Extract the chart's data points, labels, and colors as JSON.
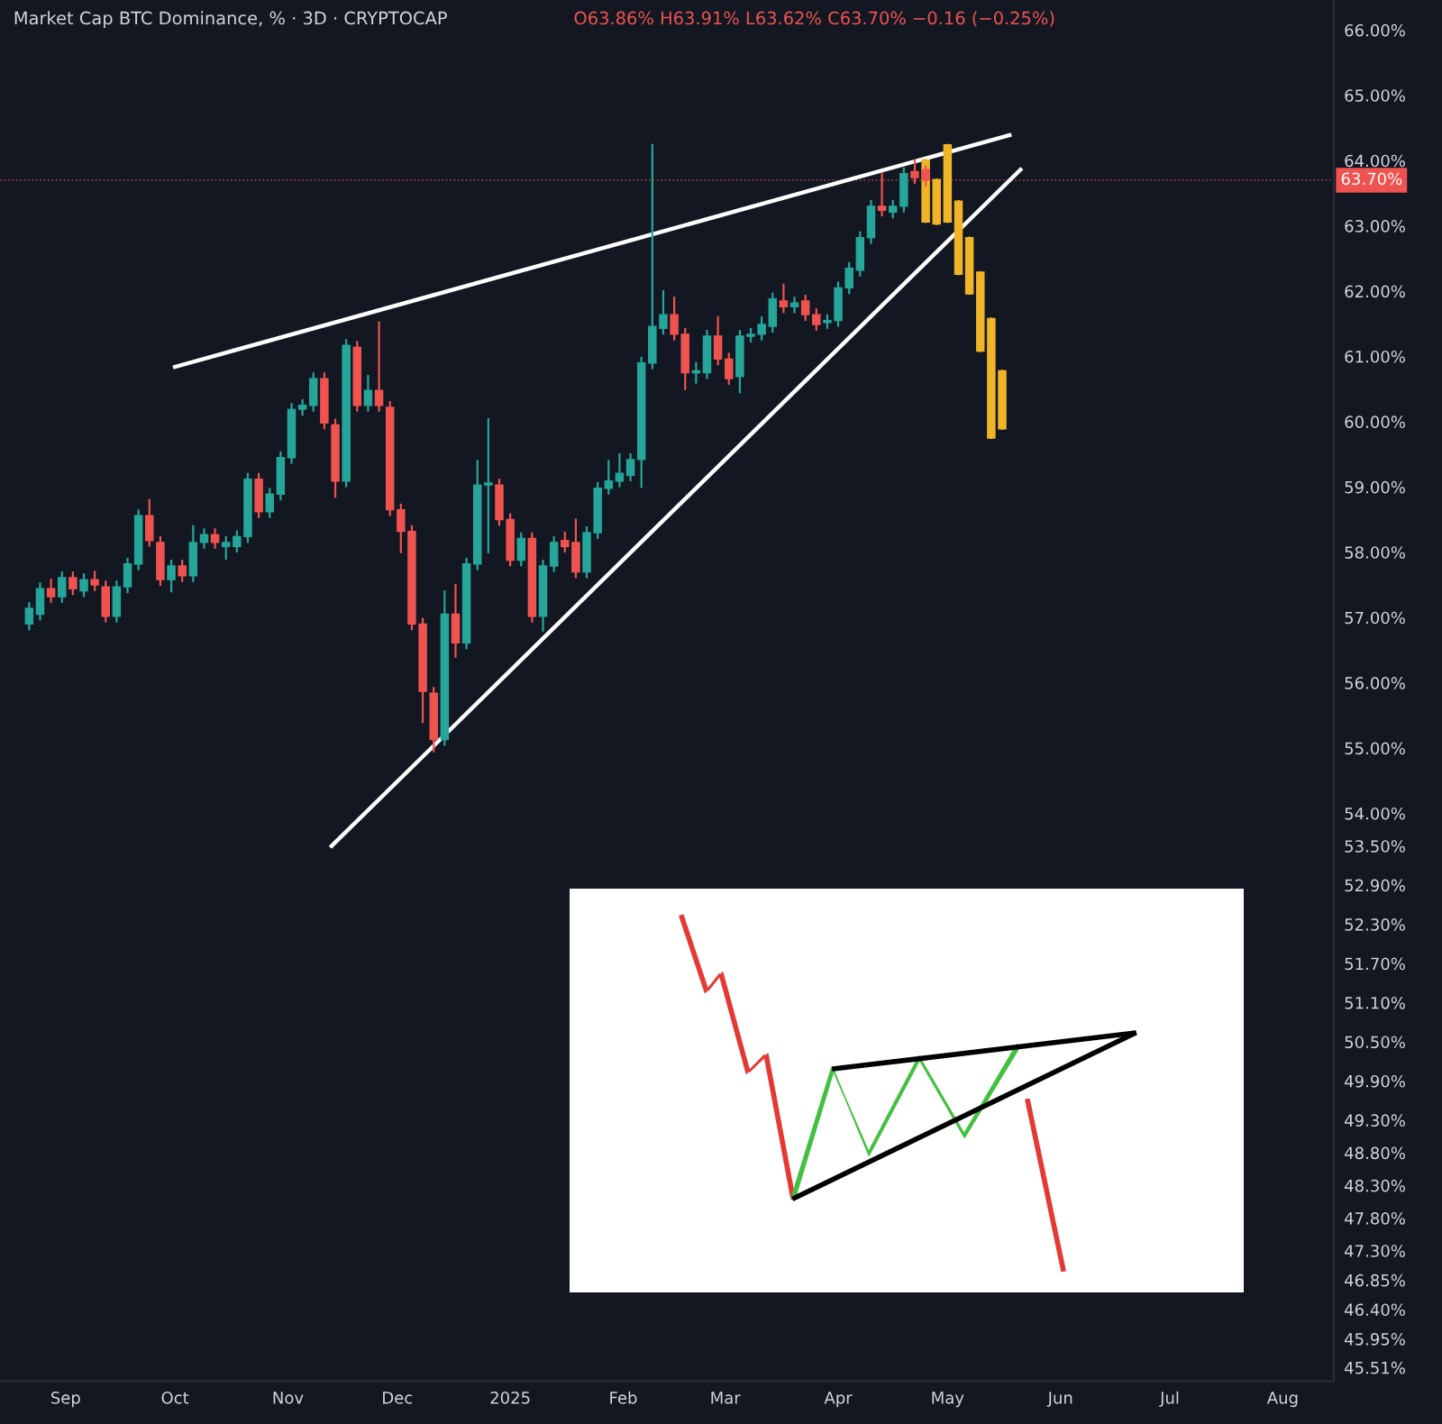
{
  "chart_data": {
    "type": "candlestick",
    "title": "Market Cap BTC Dominance, % · 3D · CRYPTOCAP",
    "subtitle": "O63.86% H63.91% L63.62% C63.70% −0.16 (−0.25%)",
    "x": [
      "2024-08-22",
      "2024-08-25",
      "2024-08-28",
      "2024-08-31",
      "2024-09-03",
      "2024-09-06",
      "2024-09-09",
      "2024-09-12",
      "2024-09-15",
      "2024-09-18",
      "2024-09-21",
      "2024-09-24",
      "2024-09-27",
      "2024-09-30",
      "2024-10-03",
      "2024-10-06",
      "2024-10-09",
      "2024-10-12",
      "2024-10-15",
      "2024-10-18",
      "2024-10-21",
      "2024-10-24",
      "2024-10-27",
      "2024-10-30",
      "2024-11-02",
      "2024-11-05",
      "2024-11-08",
      "2024-11-11",
      "2024-11-14",
      "2024-11-17",
      "2024-11-20",
      "2024-11-23",
      "2024-11-26",
      "2024-11-29",
      "2024-12-02",
      "2024-12-05",
      "2024-12-08",
      "2024-12-11",
      "2024-12-14",
      "2024-12-17",
      "2024-12-20",
      "2024-12-23",
      "2024-12-26",
      "2024-12-29",
      "2025-01-01",
      "2025-01-04",
      "2025-01-07",
      "2025-01-10",
      "2025-01-13",
      "2025-01-16",
      "2025-01-19",
      "2025-01-22",
      "2025-01-25",
      "2025-01-28",
      "2025-01-31",
      "2025-02-03",
      "2025-02-06",
      "2025-02-09",
      "2025-02-12",
      "2025-02-15",
      "2025-02-18",
      "2025-02-21",
      "2025-02-24",
      "2025-02-27",
      "2025-03-02",
      "2025-03-05",
      "2025-03-08",
      "2025-03-11",
      "2025-03-14",
      "2025-03-17",
      "2025-03-20",
      "2025-03-23",
      "2025-03-26",
      "2025-03-29",
      "2025-04-01",
      "2025-04-04",
      "2025-04-07",
      "2025-04-10",
      "2025-04-13",
      "2025-04-16",
      "2025-04-19",
      "2025-04-22",
      "2025-04-25"
    ],
    "ohlc": [
      [
        56.9,
        57.22,
        56.82,
        57.14
      ],
      [
        57.05,
        57.52,
        56.97,
        57.44
      ],
      [
        57.44,
        57.58,
        57.24,
        57.32
      ],
      [
        57.32,
        57.69,
        57.24,
        57.61
      ],
      [
        57.61,
        57.69,
        57.36,
        57.44
      ],
      [
        57.41,
        57.66,
        57.33,
        57.58
      ],
      [
        57.58,
        57.7,
        57.42,
        57.5
      ],
      [
        57.47,
        57.55,
        56.94,
        57.02
      ],
      [
        57.02,
        57.55,
        56.94,
        57.47
      ],
      [
        57.47,
        57.9,
        57.39,
        57.82
      ],
      [
        57.82,
        58.64,
        57.74,
        58.56
      ],
      [
        58.56,
        58.8,
        58.1,
        58.18
      ],
      [
        58.15,
        58.23,
        57.5,
        57.58
      ],
      [
        57.58,
        57.87,
        57.4,
        57.79
      ],
      [
        57.79,
        57.87,
        57.56,
        57.64
      ],
      [
        57.64,
        58.4,
        57.56,
        58.15
      ],
      [
        58.15,
        58.35,
        58.07,
        58.27
      ],
      [
        58.27,
        58.35,
        58.07,
        58.15
      ],
      [
        58.09,
        58.23,
        57.9,
        58.15
      ],
      [
        58.09,
        58.32,
        58.01,
        58.24
      ],
      [
        58.24,
        59.2,
        58.16,
        59.12
      ],
      [
        59.12,
        59.2,
        58.54,
        58.62
      ],
      [
        58.62,
        58.97,
        58.54,
        58.89
      ],
      [
        58.89,
        59.53,
        58.81,
        59.45
      ],
      [
        59.45,
        60.27,
        59.37,
        60.19
      ],
      [
        60.19,
        60.33,
        60.11,
        60.25
      ],
      [
        60.25,
        60.74,
        60.17,
        60.66
      ],
      [
        60.66,
        60.74,
        59.9,
        59.98
      ],
      [
        59.95,
        60.03,
        58.85,
        59.09
      ],
      [
        59.09,
        61.25,
        59.01,
        61.17
      ],
      [
        61.14,
        61.22,
        60.17,
        60.25
      ],
      [
        60.25,
        60.7,
        60.17,
        60.48
      ],
      [
        60.48,
        61.52,
        60.17,
        60.25
      ],
      [
        60.22,
        60.3,
        58.57,
        58.65
      ],
      [
        58.65,
        58.73,
        58.0,
        58.32
      ],
      [
        58.32,
        58.4,
        56.82,
        56.9
      ],
      [
        56.9,
        56.98,
        55.4,
        55.87
      ],
      [
        55.84,
        55.92,
        54.95,
        55.13
      ],
      [
        55.13,
        57.4,
        55.05,
        57.05
      ],
      [
        57.05,
        57.5,
        56.4,
        56.61
      ],
      [
        56.61,
        57.9,
        56.53,
        57.82
      ],
      [
        57.82,
        59.4,
        57.74,
        59.03
      ],
      [
        59.03,
        60.04,
        58.0,
        59.06
      ],
      [
        59.03,
        59.11,
        58.42,
        58.5
      ],
      [
        58.5,
        58.58,
        57.8,
        57.88
      ],
      [
        57.88,
        58.29,
        57.8,
        58.21
      ],
      [
        58.21,
        58.29,
        56.94,
        57.02
      ],
      [
        57.02,
        57.87,
        56.8,
        57.79
      ],
      [
        57.79,
        58.23,
        57.71,
        58.15
      ],
      [
        58.18,
        58.3,
        58.01,
        58.09
      ],
      [
        58.15,
        58.5,
        57.62,
        57.7
      ],
      [
        57.7,
        58.38,
        57.62,
        58.3
      ],
      [
        58.3,
        59.06,
        58.22,
        58.98
      ],
      [
        58.98,
        59.4,
        58.9,
        59.09
      ],
      [
        59.09,
        59.5,
        59.01,
        59.21
      ],
      [
        59.18,
        59.5,
        59.1,
        59.42
      ],
      [
        59.42,
        60.98,
        59.0,
        60.9
      ],
      [
        60.9,
        64.24,
        60.82,
        61.46
      ],
      [
        61.43,
        62.0,
        61.35,
        61.64
      ],
      [
        61.64,
        61.9,
        61.26,
        61.34
      ],
      [
        61.34,
        61.42,
        60.5,
        60.75
      ],
      [
        60.75,
        60.9,
        60.6,
        60.78
      ],
      [
        60.75,
        61.39,
        60.67,
        61.31
      ],
      [
        61.31,
        61.6,
        60.88,
        60.96
      ],
      [
        60.96,
        61.04,
        60.58,
        60.66
      ],
      [
        60.69,
        61.39,
        60.45,
        61.31
      ],
      [
        61.31,
        61.42,
        61.23,
        61.34
      ],
      [
        61.34,
        61.6,
        61.26,
        61.49
      ],
      [
        61.46,
        61.96,
        61.38,
        61.88
      ],
      [
        61.85,
        62.1,
        61.68,
        61.76
      ],
      [
        61.76,
        61.9,
        61.68,
        61.82
      ],
      [
        61.85,
        61.93,
        61.56,
        61.64
      ],
      [
        61.64,
        61.72,
        61.41,
        61.49
      ],
      [
        61.52,
        61.63,
        61.44,
        61.55
      ],
      [
        61.55,
        62.13,
        61.47,
        62.05
      ],
      [
        62.05,
        62.43,
        61.97,
        62.35
      ],
      [
        62.32,
        62.9,
        62.24,
        62.82
      ],
      [
        62.82,
        63.38,
        62.74,
        63.3
      ],
      [
        63.3,
        63.8,
        63.16,
        63.24
      ],
      [
        63.21,
        63.38,
        63.13,
        63.3
      ],
      [
        63.3,
        63.88,
        63.22,
        63.8
      ],
      [
        63.83,
        64.0,
        63.66,
        63.74
      ],
      [
        63.86,
        63.91,
        63.62,
        63.7
      ]
    ],
    "colors": [
      "#26a69a",
      "#26a69a",
      "#ef5350",
      "#26a69a",
      "#ef5350",
      "#26a69a",
      "#ef5350",
      "#ef5350",
      "#26a69a",
      "#26a69a",
      "#26a69a",
      "#ef5350",
      "#ef5350",
      "#26a69a",
      "#ef5350",
      "#26a69a",
      "#26a69a",
      "#ef5350",
      "#26a69a",
      "#26a69a",
      "#26a69a",
      "#ef5350",
      "#26a69a",
      "#26a69a",
      "#26a69a",
      "#26a69a",
      "#26a69a",
      "#ef5350",
      "#ef5350",
      "#26a69a",
      "#ef5350",
      "#26a69a",
      "#ef5350",
      "#ef5350",
      "#ef5350",
      "#ef5350",
      "#ef5350",
      "#ef5350",
      "#26a69a",
      "#ef5350",
      "#26a69a",
      "#26a69a",
      "#26a69a",
      "#ef5350",
      "#ef5350",
      "#26a69a",
      "#ef5350",
      "#26a69a",
      "#26a69a",
      "#ef5350",
      "#ef5350",
      "#26a69a",
      "#26a69a",
      "#26a69a",
      "#26a69a",
      "#26a69a",
      "#26a69a",
      "#26a69a",
      "#26a69a",
      "#ef5350",
      "#ef5350",
      "#26a69a",
      "#26a69a",
      "#ef5350",
      "#ef5350",
      "#26a69a",
      "#26a69a",
      "#26a69a",
      "#26a69a",
      "#ef5350",
      "#26a69a",
      "#ef5350",
      "#ef5350",
      "#26a69a",
      "#26a69a",
      "#26a69a",
      "#26a69a",
      "#26a69a",
      "#ef5350",
      "#26a69a",
      "#26a69a",
      "#ef5350",
      "#ef5350"
    ],
    "series": [
      {
        "type": "candlestick",
        "color": "#f0b429",
        "x": [
          "2025-04-25",
          "2025-04-28",
          "2025-05-01",
          "2025-05-04",
          "2025-05-07",
          "2025-05-10",
          "2025-05-13",
          "2025-05-16"
        ],
        "ohlc": [
          [
            64.01,
            64.01,
            63.06,
            63.06
          ],
          [
            63.71,
            63.71,
            63.03,
            63.03
          ],
          [
            64.24,
            64.24,
            63.06,
            63.06
          ],
          [
            63.38,
            63.38,
            62.26,
            62.26
          ],
          [
            62.82,
            62.82,
            61.96,
            61.96
          ],
          [
            62.29,
            62.29,
            61.08,
            61.08
          ],
          [
            61.58,
            61.58,
            59.75,
            59.75
          ],
          [
            60.78,
            60.78,
            59.89,
            59.89
          ]
        ]
      },
      {
        "type": "line",
        "color": "#ffffff",
        "x": [
          "2024-10-01",
          "2025-05-18"
        ],
        "values": [
          60.84,
          64.39
        ]
      },
      {
        "type": "line",
        "color": "#ffffff",
        "x": [
          "2024-11-13",
          "2025-05-21"
        ],
        "values": [
          53.5,
          63.86
        ]
      }
    ],
    "ref_lines": [
      {
        "axis": "y",
        "value": 63.7,
        "label": "63.70%",
        "color": "#ef5350",
        "line_style": "dotted"
      }
    ],
    "xlim": [
      "2024-08-14",
      "2025-08-15"
    ],
    "xticks": [
      {
        "value": "2024-09-01",
        "label": "Sep"
      },
      {
        "value": "2024-10-01",
        "label": "Oct"
      },
      {
        "value": "2024-11-01",
        "label": "Nov"
      },
      {
        "value": "2024-12-01",
        "label": "Dec"
      },
      {
        "value": "2025-01-01",
        "label": "2025"
      },
      {
        "value": "2025-02-01",
        "label": "Feb"
      },
      {
        "value": "2025-03-01",
        "label": "Mar"
      },
      {
        "value": "2025-04-01",
        "label": "Apr"
      },
      {
        "value": "2025-05-01",
        "label": "May"
      },
      {
        "value": "2025-06-01",
        "label": "Jun"
      },
      {
        "value": "2025-07-01",
        "label": "Jul"
      },
      {
        "value": "2025-08-01",
        "label": "Aug"
      }
    ],
    "ylim": [
      45.3,
      66.46
    ],
    "yticks": [
      {
        "value": 66,
        "label": "66.00%"
      },
      {
        "value": 65,
        "label": "65.00%"
      },
      {
        "value": 64,
        "label": "64.00%"
      },
      {
        "value": 63,
        "label": "63.00%"
      },
      {
        "value": 62,
        "label": "62.00%"
      },
      {
        "value": 61,
        "label": "61.00%"
      },
      {
        "value": 60,
        "label": "60.00%"
      },
      {
        "value": 59,
        "label": "59.00%"
      },
      {
        "value": 58,
        "label": "58.00%"
      },
      {
        "value": 57,
        "label": "57.00%"
      },
      {
        "value": 56,
        "label": "56.00%"
      },
      {
        "value": 55,
        "label": "55.00%"
      },
      {
        "value": 54,
        "label": "54.00%"
      },
      {
        "value": 53.5,
        "label": "53.50%"
      },
      {
        "value": 52.9,
        "label": "52.90%"
      },
      {
        "value": 52.3,
        "label": "52.30%"
      },
      {
        "value": 51.7,
        "label": "51.70%"
      },
      {
        "value": 51.1,
        "label": "51.10%"
      },
      {
        "value": 50.5,
        "label": "50.50%"
      },
      {
        "value": 49.9,
        "label": "49.90%"
      },
      {
        "value": 49.3,
        "label": "49.30%"
      },
      {
        "value": 48.8,
        "label": "48.80%"
      },
      {
        "value": 48.3,
        "label": "48.30%"
      },
      {
        "value": 47.8,
        "label": "47.80%"
      },
      {
        "value": 47.3,
        "label": "47.30%"
      },
      {
        "value": 46.85,
        "label": "46.85%"
      },
      {
        "value": 46.4,
        "label": "46.40%"
      },
      {
        "value": 45.95,
        "label": "45.95%"
      },
      {
        "value": 45.51,
        "label": "45.51%"
      }
    ],
    "grid": false
  }
}
